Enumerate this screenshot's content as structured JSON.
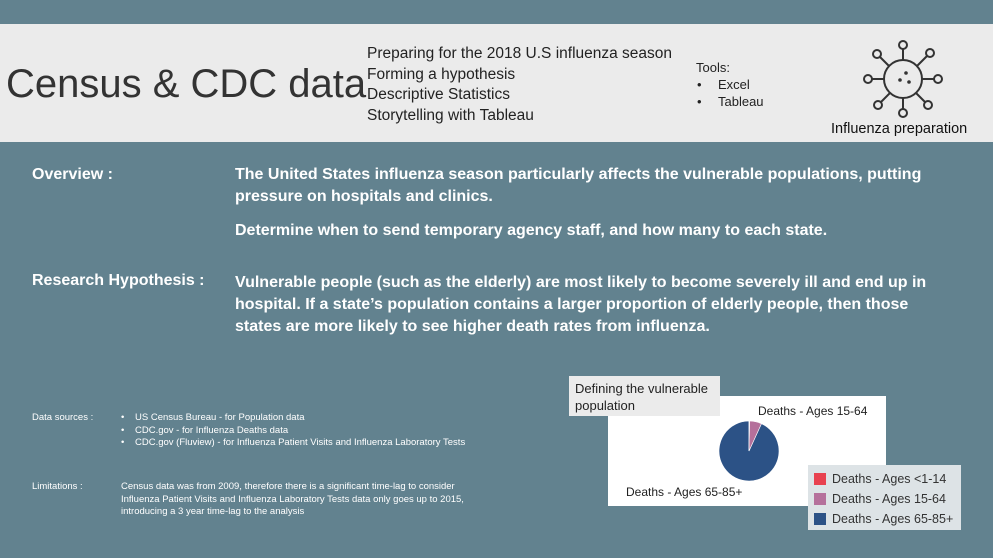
{
  "header": {
    "title": "Census & CDC data",
    "topics": [
      "Preparing for the 2018 U.S influenza season",
      "Forming a hypothesis",
      "Descriptive Statistics",
      "Storytelling with Tableau"
    ],
    "tools_label": "Tools:",
    "tools": [
      "Excel",
      "Tableau"
    ],
    "icon": "virus-icon",
    "icon_caption": "Influenza preparation"
  },
  "overview": {
    "label": "Overview :",
    "paragraph1": "The United States influenza season particularly affects the vulnerable populations, putting pressure on hospitals and clinics.",
    "paragraph2": "Determine when to send temporary agency staff, and how many to each state."
  },
  "hypothesis": {
    "label": "Research Hypothesis :",
    "text": "Vulnerable people (such as the elderly) are most likely to become severely ill and end up in hospital. If a state’s population contains a larger proportion of elderly people, then those states are more likely to see higher death rates from influenza."
  },
  "sources": {
    "label": "Data sources :",
    "items": [
      "US Census Bureau - for Population data",
      "CDC.gov - for Influenza Deaths data",
      "CDC.gov (Fluview) - for Influenza Patient Visits and Influenza Laboratory Tests"
    ]
  },
  "limitations": {
    "label": "Limitations :",
    "text": "Census data was from 2009, therefore there is a significant time-lag to consider Influenza Patient Visits and Influenza Laboratory Tests data only goes up to 2015, introducing a 3 year time-lag to the analysis"
  },
  "chart_data": {
    "type": "pie",
    "title": "Defining the vulnerable population",
    "slices": [
      {
        "name": "Deaths - Ages <1-14",
        "value": 0.3,
        "color": "#e8414f"
      },
      {
        "name": "Deaths - Ages 15-64",
        "value": 6.5,
        "color": "#b5709b"
      },
      {
        "name": "Deaths - Ages 65-85+",
        "value": 93.2,
        "color": "#2c5286"
      }
    ],
    "slice_labels": [
      "Deaths - Ages 15-64",
      "Deaths - Ages 65-85+"
    ],
    "legend_placement": "bottom-right"
  }
}
